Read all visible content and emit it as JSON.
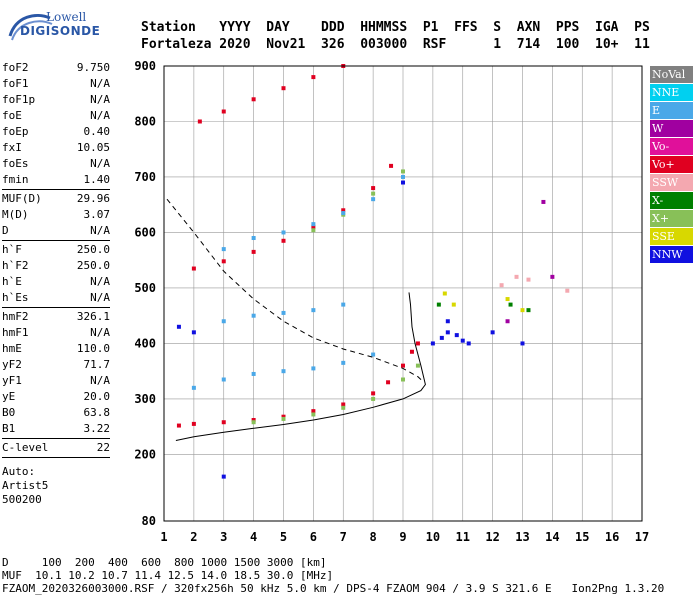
{
  "logo": {
    "line1": "Lowell",
    "line2": "DIGISONDE"
  },
  "header": {
    "labels": [
      "Station",
      "YYYY",
      "DAY",
      "DDD",
      "HHMMSS",
      "P1",
      "FFS",
      "S",
      "AXN",
      "PPS",
      "IGA",
      "PS"
    ],
    "values": [
      "Fortaleza",
      "2020",
      "Nov21",
      "326",
      "003000",
      "RSF",
      "",
      "1",
      "714",
      "100",
      "10+",
      "11"
    ]
  },
  "params_groups": [
    [
      [
        "foF2",
        "9.750"
      ],
      [
        "foF1",
        "N/A"
      ],
      [
        "foF1p",
        "N/A"
      ],
      [
        "foE",
        "N/A"
      ],
      [
        "foEp",
        "0.40"
      ],
      [
        "fxI",
        "10.05"
      ],
      [
        "foEs",
        "N/A"
      ],
      [
        "fmin",
        "1.40"
      ]
    ],
    [
      [
        "MUF(D)",
        "29.96"
      ],
      [
        "M(D)",
        "3.07"
      ],
      [
        "D",
        "N/A"
      ]
    ],
    [
      [
        "h`F",
        "250.0"
      ],
      [
        "h`F2",
        "250.0"
      ],
      [
        "h`E",
        "N/A"
      ],
      [
        "h`Es",
        "N/A"
      ]
    ],
    [
      [
        "hmF2",
        "326.1"
      ],
      [
        "hmF1",
        "N/A"
      ],
      [
        "hmE",
        "110.0"
      ],
      [
        "yF2",
        "71.7"
      ],
      [
        "yF1",
        "N/A"
      ],
      [
        "yE",
        "20.0"
      ],
      [
        "B0",
        "63.8"
      ],
      [
        "B1",
        "3.22"
      ]
    ],
    [
      [
        "C-level",
        "22"
      ]
    ]
  ],
  "auto": [
    "Auto:",
    "Artist5",
    "500200"
  ],
  "legend": [
    {
      "label": "NoVal",
      "color": "#808080"
    },
    {
      "label": "NNE",
      "color": "#00d0f0"
    },
    {
      "label": "E",
      "color": "#4aa8e8"
    },
    {
      "label": "W",
      "color": "#a000a0"
    },
    {
      "label": "Vo-",
      "color": "#e0109a"
    },
    {
      "label": "Vo+",
      "color": "#e00020"
    },
    {
      "label": "SSW",
      "color": "#f4a8b0"
    },
    {
      "label": "X-",
      "color": "#008000"
    },
    {
      "label": "X+",
      "color": "#88c058"
    },
    {
      "label": "SSE",
      "color": "#d8d800"
    },
    {
      "label": "NNW",
      "color": "#1010e0"
    }
  ],
  "footer": {
    "d_row": "D     100  200  400  600  800 1000 1500 3000 [km]",
    "muf_row": "MUF  10.1 10.2 10.7 11.4 12.5 14.0 18.5 30.0 [MHz]",
    "file_row": "FZAOM_2020326003000.RSF / 320fx256h 50 kHz 5.0 km / DPS-4 FZAOM 904 / 3.9 S 321.6 E   Ion2Png 1.3.20"
  },
  "chart_data": {
    "type": "scatter",
    "xlim": [
      1,
      17
    ],
    "ylim": [
      80,
      900
    ],
    "x_ticks": [
      1,
      2,
      3,
      4,
      5,
      6,
      7,
      8,
      9,
      10,
      11,
      12,
      13,
      14,
      15,
      16,
      17
    ],
    "y_ticks": [
      80,
      200,
      300,
      400,
      500,
      600,
      700,
      800,
      900
    ],
    "grid": true,
    "series": [
      {
        "name": "Vo+",
        "color": "#e00020",
        "points": [
          [
            1.5,
            252
          ],
          [
            2,
            255
          ],
          [
            3,
            258
          ],
          [
            4,
            262
          ],
          [
            5,
            268
          ],
          [
            6,
            278
          ],
          [
            7,
            290
          ],
          [
            8,
            310
          ],
          [
            8.5,
            330
          ],
          [
            9,
            360
          ],
          [
            9.3,
            385
          ],
          [
            9.5,
            400
          ],
          [
            2,
            535
          ],
          [
            3,
            548
          ],
          [
            4,
            565
          ],
          [
            5,
            585
          ],
          [
            6,
            610
          ],
          [
            7,
            640
          ],
          [
            8,
            680
          ],
          [
            8.6,
            720
          ],
          [
            2.2,
            800
          ],
          [
            3,
            818
          ],
          [
            4,
            840
          ],
          [
            5,
            860
          ],
          [
            6,
            880
          ],
          [
            7,
            900
          ]
        ]
      },
      {
        "name": "X+",
        "color": "#88c058",
        "points": [
          [
            4,
            258
          ],
          [
            5,
            264
          ],
          [
            6,
            272
          ],
          [
            7,
            284
          ],
          [
            8,
            300
          ],
          [
            9,
            335
          ],
          [
            9.5,
            360
          ],
          [
            6,
            604
          ],
          [
            7,
            632
          ],
          [
            8,
            670
          ],
          [
            9,
            710
          ]
        ]
      },
      {
        "name": "E",
        "color": "#4aa8e8",
        "points": [
          [
            2,
            320
          ],
          [
            3,
            335
          ],
          [
            4,
            345
          ],
          [
            5,
            350
          ],
          [
            6,
            355
          ],
          [
            7,
            365
          ],
          [
            8,
            380
          ],
          [
            3,
            440
          ],
          [
            4,
            450
          ],
          [
            5,
            455
          ],
          [
            6,
            460
          ],
          [
            7,
            470
          ],
          [
            3,
            570
          ],
          [
            4,
            590
          ],
          [
            5,
            600
          ],
          [
            6,
            615
          ],
          [
            7,
            635
          ],
          [
            8,
            660
          ],
          [
            9,
            700
          ]
        ]
      },
      {
        "name": "NNW",
        "color": "#1010e0",
        "points": [
          [
            1.5,
            430
          ],
          [
            2,
            420
          ],
          [
            10,
            400
          ],
          [
            10.3,
            410
          ],
          [
            10.5,
            420
          ],
          [
            10.8,
            415
          ],
          [
            11,
            405
          ],
          [
            11.2,
            400
          ],
          [
            10.5,
            440
          ],
          [
            12,
            420
          ],
          [
            13,
            400
          ],
          [
            3,
            160
          ],
          [
            9,
            690
          ]
        ]
      },
      {
        "name": "SSE",
        "color": "#d8d800",
        "points": [
          [
            10.4,
            490
          ],
          [
            10.7,
            470
          ],
          [
            12.5,
            480
          ],
          [
            13,
            460
          ]
        ]
      },
      {
        "name": "X-",
        "color": "#008000",
        "points": [
          [
            10.2,
            470
          ],
          [
            13.2,
            460
          ],
          [
            12.6,
            470
          ]
        ]
      },
      {
        "name": "SSW",
        "color": "#f4a8b0",
        "points": [
          [
            12.3,
            505
          ],
          [
            12.8,
            520
          ],
          [
            13.2,
            515
          ],
          [
            14.5,
            495
          ]
        ]
      },
      {
        "name": "W",
        "color": "#a000a0",
        "points": [
          [
            14,
            520
          ],
          [
            12.5,
            440
          ],
          [
            13.7,
            655
          ]
        ]
      }
    ],
    "profile_solid": [
      [
        1.4,
        225
      ],
      [
        2,
        232
      ],
      [
        3,
        240
      ],
      [
        4,
        247
      ],
      [
        5,
        254
      ],
      [
        6,
        262
      ],
      [
        7,
        272
      ],
      [
        8,
        285
      ],
      [
        9,
        300
      ],
      [
        9.6,
        315
      ],
      [
        9.75,
        326
      ],
      [
        9.6,
        360
      ],
      [
        9.4,
        400
      ],
      [
        9.3,
        430
      ],
      [
        9.25,
        470
      ],
      [
        9.2,
        492
      ]
    ],
    "profile_dashed": [
      [
        1.1,
        660
      ],
      [
        2,
        600
      ],
      [
        3,
        530
      ],
      [
        4,
        480
      ],
      [
        5,
        440
      ],
      [
        6,
        410
      ],
      [
        7,
        390
      ],
      [
        8,
        375
      ],
      [
        9,
        355
      ],
      [
        9.5,
        340
      ],
      [
        9.7,
        330
      ]
    ]
  }
}
